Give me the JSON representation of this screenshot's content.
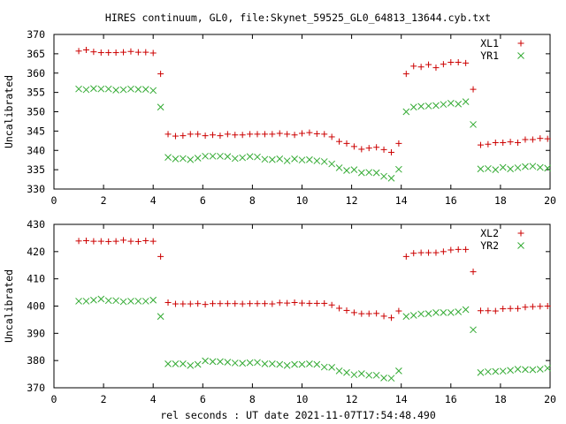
{
  "title": "HIRES continuum, GL0, file:Skynet_59525_GL0_64813_13644.cyb.txt",
  "xlabel": "rel seconds : UT date 2021-11-07T17:54:48.490",
  "colors": {
    "series_a": "#cc0000",
    "series_b": "#33aa33",
    "axis": "#000000"
  },
  "chart_data": [
    {
      "type": "scatter",
      "ylabel": "Uncalibrated",
      "xlim": [
        0,
        20
      ],
      "ylim": [
        330,
        370
      ],
      "xticks": [
        0,
        2,
        4,
        6,
        8,
        10,
        12,
        14,
        16,
        18,
        20
      ],
      "yticks": [
        330,
        335,
        340,
        345,
        350,
        355,
        360,
        365,
        370
      ],
      "grid": false,
      "legend_position": "top-right",
      "x": [
        1.0,
        1.3,
        1.6,
        1.9,
        2.2,
        2.5,
        2.8,
        3.1,
        3.4,
        3.7,
        4.0,
        4.3,
        4.6,
        4.9,
        5.2,
        5.5,
        5.8,
        6.1,
        6.4,
        6.7,
        7.0,
        7.3,
        7.6,
        7.9,
        8.2,
        8.5,
        8.8,
        9.1,
        9.4,
        9.7,
        10.0,
        10.3,
        10.6,
        10.9,
        11.2,
        11.5,
        11.8,
        12.1,
        12.4,
        12.7,
        13.0,
        13.3,
        13.6,
        13.9,
        14.2,
        14.5,
        14.8,
        15.1,
        15.4,
        15.7,
        16.0,
        16.3,
        16.6,
        16.9,
        17.2,
        17.5,
        17.8,
        18.1,
        18.4,
        18.7,
        19.0,
        19.3,
        19.6,
        19.9
      ],
      "series": [
        {
          "name": "XL1",
          "marker": "plus",
          "values": [
            365.7,
            366.0,
            365.5,
            365.3,
            365.3,
            365.3,
            365.4,
            365.6,
            365.4,
            365.4,
            365.2,
            359.8,
            344.2,
            343.7,
            343.8,
            344.2,
            344.2,
            343.8,
            344.0,
            343.8,
            344.2,
            344.0,
            344.0,
            344.2,
            344.2,
            344.2,
            344.2,
            344.4,
            344.2,
            344.0,
            344.4,
            344.6,
            344.3,
            344.2,
            343.5,
            342.3,
            341.8,
            341.0,
            340.3,
            340.6,
            340.8,
            340.2,
            339.5,
            341.8,
            359.8,
            361.8,
            361.6,
            362.2,
            361.4,
            362.3,
            362.8,
            362.8,
            362.6,
            355.8,
            341.4,
            341.6,
            342.0,
            342.0,
            342.2,
            342.0,
            342.8,
            342.8,
            343.1,
            343.0
          ]
        },
        {
          "name": "YR1",
          "marker": "cross",
          "values": [
            355.9,
            355.7,
            356.0,
            355.9,
            355.9,
            355.6,
            355.7,
            355.9,
            355.8,
            355.8,
            355.5,
            351.2,
            338.2,
            337.8,
            337.9,
            337.6,
            338.0,
            338.5,
            338.5,
            338.5,
            338.4,
            337.9,
            338.1,
            338.4,
            338.3,
            337.7,
            337.6,
            337.8,
            337.3,
            337.8,
            337.5,
            337.6,
            337.3,
            337.1,
            336.5,
            335.5,
            334.8,
            335.0,
            334.2,
            334.3,
            334.2,
            333.3,
            332.8,
            335.1,
            350.0,
            351.2,
            351.4,
            351.5,
            351.6,
            351.9,
            352.2,
            352.0,
            352.6,
            346.7,
            335.2,
            335.3,
            335.0,
            335.6,
            335.2,
            335.5,
            335.8,
            335.9,
            335.6,
            335.4
          ]
        }
      ]
    },
    {
      "type": "scatter",
      "ylabel": "Uncalibrated",
      "xlim": [
        0,
        20
      ],
      "ylim": [
        370,
        430
      ],
      "xticks": [
        0,
        2,
        4,
        6,
        8,
        10,
        12,
        14,
        16,
        18,
        20
      ],
      "yticks": [
        370,
        380,
        390,
        400,
        410,
        420,
        430
      ],
      "grid": false,
      "legend_position": "top-right",
      "x": [
        1.0,
        1.3,
        1.6,
        1.9,
        2.2,
        2.5,
        2.8,
        3.1,
        3.4,
        3.7,
        4.0,
        4.3,
        4.6,
        4.9,
        5.2,
        5.5,
        5.8,
        6.1,
        6.4,
        6.7,
        7.0,
        7.3,
        7.6,
        7.9,
        8.2,
        8.5,
        8.8,
        9.1,
        9.4,
        9.7,
        10.0,
        10.3,
        10.6,
        10.9,
        11.2,
        11.5,
        11.8,
        12.1,
        12.4,
        12.7,
        13.0,
        13.3,
        13.6,
        13.9,
        14.2,
        14.5,
        14.8,
        15.1,
        15.4,
        15.7,
        16.0,
        16.3,
        16.6,
        16.9,
        17.2,
        17.5,
        17.8,
        18.1,
        18.4,
        18.7,
        19.0,
        19.3,
        19.6,
        19.9
      ],
      "series": [
        {
          "name": "XL2",
          "marker": "plus",
          "values": [
            423.9,
            424.0,
            423.8,
            423.8,
            423.7,
            423.8,
            424.2,
            423.8,
            423.7,
            424.0,
            423.8,
            418.2,
            401.3,
            400.8,
            400.8,
            400.8,
            400.9,
            400.6,
            400.9,
            400.9,
            400.9,
            400.9,
            400.8,
            400.9,
            400.9,
            400.9,
            400.8,
            401.2,
            401.1,
            401.3,
            401.1,
            401.0,
            401.0,
            401.0,
            400.4,
            399.2,
            398.4,
            397.6,
            397.2,
            397.2,
            397.3,
            396.3,
            395.7,
            398.2,
            418.2,
            419.4,
            419.6,
            419.6,
            419.6,
            420.0,
            420.6,
            420.8,
            420.8,
            412.6,
            398.3,
            398.3,
            398.2,
            399.0,
            399.1,
            399.1,
            399.6,
            399.8,
            399.9,
            400.0
          ]
        },
        {
          "name": "YR2",
          "marker": "cross",
          "values": [
            401.8,
            401.8,
            402.2,
            402.6,
            402.0,
            402.0,
            401.6,
            401.8,
            401.8,
            401.8,
            402.2,
            396.2,
            378.8,
            378.8,
            378.8,
            378.2,
            378.6,
            379.9,
            379.6,
            379.6,
            379.4,
            379.1,
            379.0,
            379.2,
            379.3,
            378.8,
            378.8,
            378.6,
            378.2,
            378.6,
            378.6,
            378.8,
            378.6,
            377.6,
            377.5,
            376.2,
            375.6,
            374.8,
            375.2,
            374.6,
            374.6,
            373.6,
            373.5,
            376.2,
            396.2,
            396.6,
            397.1,
            397.2,
            397.6,
            397.6,
            397.6,
            397.9,
            398.7,
            391.3,
            375.6,
            375.9,
            376.0,
            376.1,
            376.4,
            376.8,
            376.7,
            376.6,
            376.8,
            377.2
          ]
        }
      ]
    }
  ]
}
